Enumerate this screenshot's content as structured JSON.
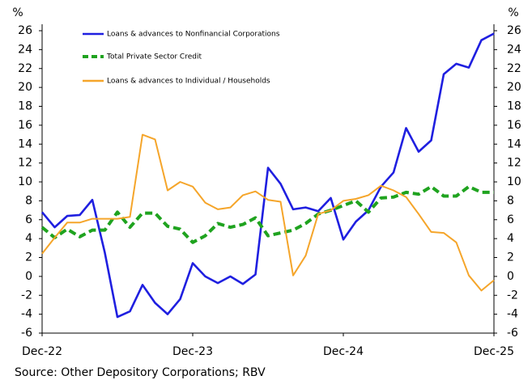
{
  "chart_data": {
    "type": "line",
    "ylabel": "%",
    "y2label": "%",
    "source": "Source: Other Depository Corporations; RBV",
    "categories": [
      "Dec-22",
      null,
      null,
      null,
      null,
      null,
      null,
      null,
      null,
      null,
      null,
      null,
      "Dec-23",
      null,
      null,
      null,
      null,
      null,
      null,
      null,
      null,
      null,
      null,
      null,
      "Dec-24",
      null,
      null,
      null,
      null,
      null,
      null,
      null,
      null,
      null,
      null,
      null,
      "Dec-25"
    ],
    "series": [
      {
        "name": "Loans & advances to Nonfinancial Corporations",
        "color": "#1f1fe0",
        "dash": "solid",
        "values": [
          6.8,
          5.2,
          6.4,
          6.5,
          8.1,
          2.5,
          -4.3,
          -3.7,
          -0.9,
          -2.8,
          -4.0,
          -2.4,
          1.4,
          0,
          -0.7,
          0,
          -0.8,
          0.2,
          11.5,
          9.8,
          7.1,
          7.3,
          6.9,
          8.3,
          3.9,
          5.8,
          7.0,
          9.5,
          11.0,
          15.7,
          13.2,
          14.4,
          21.4,
          22.5,
          22.1,
          25.0,
          25.7
        ]
      },
      {
        "name": "Total Private Sector Credit",
        "color": "#1fa31f",
        "dash": "dashed",
        "values": [
          5.2,
          4.1,
          5.0,
          4.2,
          4.9,
          4.9,
          6.8,
          5.2,
          6.7,
          6.7,
          5.3,
          5.0,
          3.6,
          4.3,
          5.6,
          5.2,
          5.5,
          6.2,
          4.3,
          4.6,
          4.9,
          5.6,
          6.6,
          7.0,
          7.5,
          8.0,
          6.8,
          8.3,
          8.4,
          8.9,
          8.7,
          9.5,
          8.5,
          8.5,
          9.5,
          8.9,
          8.9
        ]
      },
      {
        "name": "Loans & advances to Individual / Households",
        "color": "#f5a52a",
        "dash": "solid",
        "values": [
          2.4,
          4.1,
          5.7,
          5.7,
          6.1,
          6.1,
          6.1,
          6.3,
          15.0,
          14.5,
          9.1,
          10.0,
          9.5,
          7.8,
          7.1,
          7.3,
          8.6,
          9.0,
          8.1,
          7.9,
          0.1,
          2.2,
          6.6,
          7.0,
          8.0,
          8.2,
          8.6,
          9.6,
          9.1,
          8.4,
          6.6,
          4.7,
          4.6,
          3.6,
          0.1,
          -1.5,
          -0.4
        ]
      }
    ],
    "ylim": [
      -6,
      26
    ],
    "yticks": [
      -6,
      -4,
      -2,
      0,
      2,
      4,
      6,
      8,
      10,
      12,
      14,
      16,
      18,
      20,
      22,
      24,
      26
    ],
    "y2lim": [
      -6,
      26
    ],
    "y2ticks": [
      -6,
      -4,
      -2,
      0,
      2,
      4,
      6,
      8,
      10,
      12,
      14,
      16,
      18,
      20,
      22,
      24,
      26
    ],
    "grid": false,
    "legend": "upper left"
  }
}
